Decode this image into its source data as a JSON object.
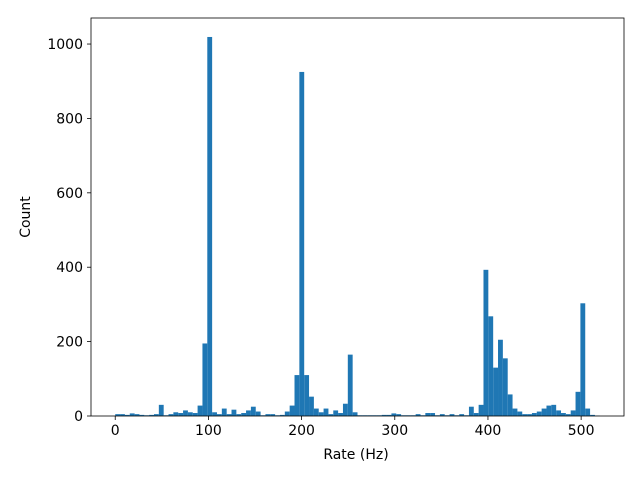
{
  "chart_data": {
    "type": "histogram",
    "xlabel": "Rate (Hz)",
    "ylabel": "Count",
    "color": "#1f77b4",
    "bins": [
      0,
      5.2,
      10.4,
      15.6,
      20.8,
      26,
      31.2,
      36.4,
      41.6,
      46.8,
      52,
      57.2,
      62.4,
      67.6,
      72.8,
      78,
      83.2,
      88.4,
      93.6,
      98.8,
      104,
      109.2,
      114.4,
      119.6,
      124.8,
      130,
      135.2,
      140.4,
      145.6,
      150.8,
      156,
      161.2,
      166.4,
      171.6,
      176.8,
      182,
      187.2,
      192.4,
      197.6,
      202.8,
      208,
      213.2,
      218.4,
      223.6,
      228.8,
      234,
      239.2,
      244.4,
      249.6,
      254.8,
      260,
      265.2,
      270.4,
      275.6,
      280.8,
      286,
      291.2,
      296.4,
      301.6,
      306.8,
      312,
      317.2,
      322.4,
      327.6,
      332.8,
      338,
      343.2,
      348.4,
      353.6,
      358.8,
      364,
      369.2,
      374.4,
      379.6,
      384.8,
      390,
      395.2,
      400.4,
      405.6,
      410.8,
      416,
      421.2,
      426.4,
      431.6,
      436.8,
      442,
      447.2,
      452.4,
      457.6,
      462.8,
      468,
      473.2,
      478.4,
      483.6,
      488.8,
      494,
      499.2,
      504.4,
      509.6,
      514.8,
      520
    ],
    "values": [
      5,
      5,
      3,
      7,
      5,
      3,
      2,
      3,
      5,
      30,
      2,
      5,
      10,
      8,
      15,
      10,
      8,
      28,
      195,
      1019,
      10,
      5,
      20,
      5,
      17,
      5,
      8,
      15,
      25,
      12,
      2,
      5,
      5,
      2,
      3,
      12,
      28,
      110,
      925,
      110,
      52,
      20,
      10,
      20,
      5,
      15,
      8,
      33,
      165,
      10,
      2,
      2,
      2,
      2,
      2,
      3,
      3,
      7,
      5,
      2,
      2,
      2,
      5,
      2,
      8,
      8,
      2,
      5,
      2,
      5,
      2,
      5,
      2,
      25,
      8,
      30,
      393,
      268,
      130,
      205,
      155,
      58,
      20,
      12,
      5,
      5,
      8,
      12,
      20,
      28,
      30,
      15,
      8,
      5,
      15,
      65,
      303,
      20,
      3,
      1
    ],
    "xlim": [
      -26,
      546
    ],
    "ylim": [
      0,
      1070
    ],
    "xticks": [
      0,
      100,
      200,
      300,
      400,
      500
    ],
    "yticks": [
      0,
      200,
      400,
      600,
      800,
      1000
    ]
  }
}
